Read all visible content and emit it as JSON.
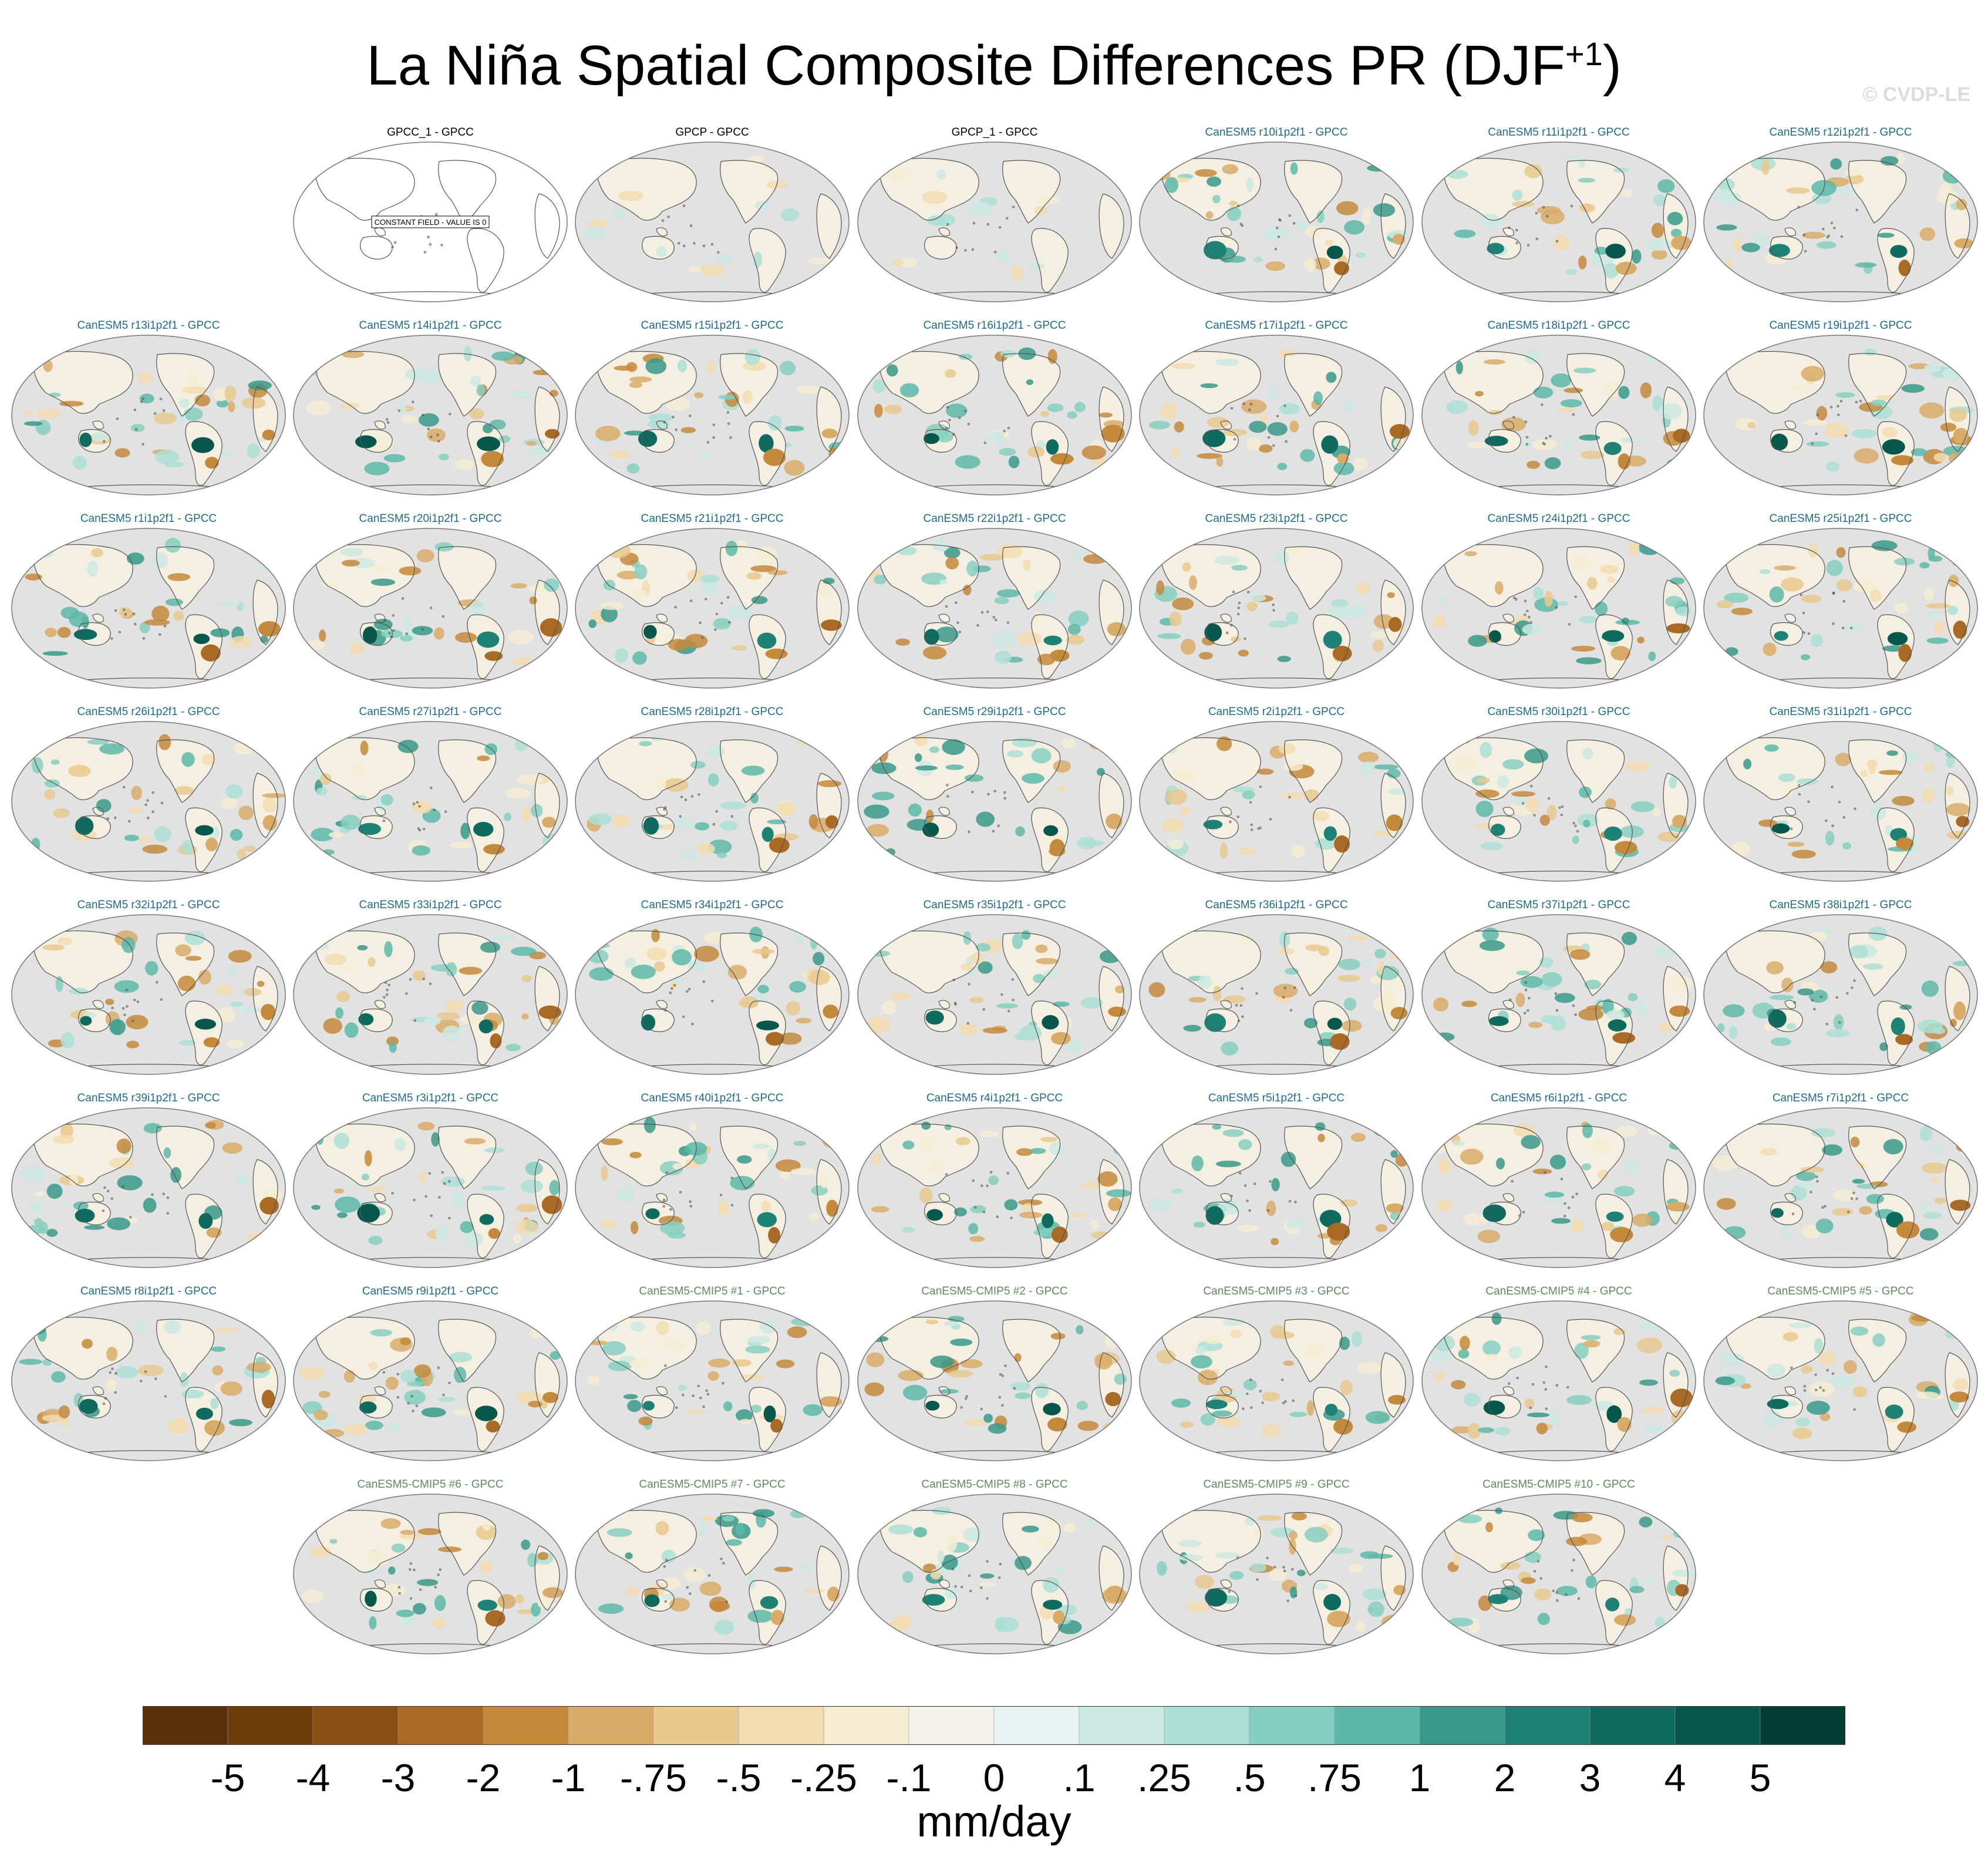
{
  "title": "La Niña Spatial Composite Differences PR (DJF",
  "title_sup": "+1",
  "title_end": ")",
  "credit": "© CVDP-LE",
  "constant_field_label": "CONSTANT FIELD - VALUE IS 0",
  "colors": {
    "obs_title": "#000000",
    "model_title": "#1f6b8a",
    "cmip5_title": "#5f8a5f",
    "ocean": "#e2e2e2",
    "coast": "#555555",
    "dry": "#b0772a",
    "wet": "#1a8a7a"
  },
  "panels": [
    {
      "title": "GPCC_1 - GPCC",
      "kind": "constant"
    },
    {
      "title": "GPCP - GPCC",
      "kind": "obs"
    },
    {
      "title": "GPCP_1 - GPCC",
      "kind": "obs"
    },
    {
      "title": "CanESM5 r10i1p2f1 - GPCC",
      "kind": "model"
    },
    {
      "title": "CanESM5 r11i1p2f1 - GPCC",
      "kind": "model"
    },
    {
      "title": "CanESM5 r12i1p2f1 - GPCC",
      "kind": "model"
    },
    {
      "title": "CanESM5 r13i1p2f1 - GPCC",
      "kind": "model"
    },
    {
      "title": "CanESM5 r14i1p2f1 - GPCC",
      "kind": "model"
    },
    {
      "title": "CanESM5 r15i1p2f1 - GPCC",
      "kind": "model"
    },
    {
      "title": "CanESM5 r16i1p2f1 - GPCC",
      "kind": "model"
    },
    {
      "title": "CanESM5 r17i1p2f1 - GPCC",
      "kind": "model"
    },
    {
      "title": "CanESM5 r18i1p2f1 - GPCC",
      "kind": "model"
    },
    {
      "title": "CanESM5 r19i1p2f1 - GPCC",
      "kind": "model"
    },
    {
      "title": "CanESM5 r1i1p2f1 - GPCC",
      "kind": "model"
    },
    {
      "title": "CanESM5 r20i1p2f1 - GPCC",
      "kind": "model"
    },
    {
      "title": "CanESM5 r21i1p2f1 - GPCC",
      "kind": "model"
    },
    {
      "title": "CanESM5 r22i1p2f1 - GPCC",
      "kind": "model"
    },
    {
      "title": "CanESM5 r23i1p2f1 - GPCC",
      "kind": "model"
    },
    {
      "title": "CanESM5 r24i1p2f1 - GPCC",
      "kind": "model"
    },
    {
      "title": "CanESM5 r25i1p2f1 - GPCC",
      "kind": "model"
    },
    {
      "title": "CanESM5 r26i1p2f1 - GPCC",
      "kind": "model"
    },
    {
      "title": "CanESM5 r27i1p2f1 - GPCC",
      "kind": "model"
    },
    {
      "title": "CanESM5 r28i1p2f1 - GPCC",
      "kind": "model"
    },
    {
      "title": "CanESM5 r29i1p2f1 - GPCC",
      "kind": "model"
    },
    {
      "title": "CanESM5 r2i1p2f1 - GPCC",
      "kind": "model"
    },
    {
      "title": "CanESM5 r30i1p2f1 - GPCC",
      "kind": "model"
    },
    {
      "title": "CanESM5 r31i1p2f1 - GPCC",
      "kind": "model"
    },
    {
      "title": "CanESM5 r32i1p2f1 - GPCC",
      "kind": "model"
    },
    {
      "title": "CanESM5 r33i1p2f1 - GPCC",
      "kind": "model"
    },
    {
      "title": "CanESM5 r34i1p2f1 - GPCC",
      "kind": "model"
    },
    {
      "title": "CanESM5 r35i1p2f1 - GPCC",
      "kind": "model"
    },
    {
      "title": "CanESM5 r36i1p2f1 - GPCC",
      "kind": "model"
    },
    {
      "title": "CanESM5 r37i1p2f1 - GPCC",
      "kind": "model"
    },
    {
      "title": "CanESM5 r38i1p2f1 - GPCC",
      "kind": "model"
    },
    {
      "title": "CanESM5 r39i1p2f1 - GPCC",
      "kind": "model"
    },
    {
      "title": "CanESM5 r3i1p2f1 - GPCC",
      "kind": "model"
    },
    {
      "title": "CanESM5 r40i1p2f1 - GPCC",
      "kind": "model"
    },
    {
      "title": "CanESM5 r4i1p2f1 - GPCC",
      "kind": "model"
    },
    {
      "title": "CanESM5 r5i1p2f1 - GPCC",
      "kind": "model"
    },
    {
      "title": "CanESM5 r6i1p2f1 - GPCC",
      "kind": "model"
    },
    {
      "title": "CanESM5 r7i1p2f1 - GPCC",
      "kind": "model"
    },
    {
      "title": "CanESM5 r8i1p2f1 - GPCC",
      "kind": "model"
    },
    {
      "title": "CanESM5 r9i1p2f1 - GPCC",
      "kind": "model"
    },
    {
      "title": "CanESM5-CMIP5 #1 - GPCC",
      "kind": "cmip5"
    },
    {
      "title": "CanESM5-CMIP5 #2 - GPCC",
      "kind": "cmip5"
    },
    {
      "title": "CanESM5-CMIP5 #3 - GPCC",
      "kind": "cmip5"
    },
    {
      "title": "CanESM5-CMIP5 #4 - GPCC",
      "kind": "cmip5"
    },
    {
      "title": "CanESM5-CMIP5 #5 - GPCC",
      "kind": "cmip5"
    },
    {
      "title": "CanESM5-CMIP5 #6 - GPCC",
      "kind": "cmip5"
    },
    {
      "title": "CanESM5-CMIP5 #7 - GPCC",
      "kind": "cmip5"
    },
    {
      "title": "CanESM5-CMIP5 #8 - GPCC",
      "kind": "cmip5"
    },
    {
      "title": "CanESM5-CMIP5 #9 - GPCC",
      "kind": "cmip5"
    },
    {
      "title": "CanESM5-CMIP5 #10 - GPCC",
      "kind": "cmip5"
    }
  ],
  "colorbar": {
    "colors": [
      "#5a3008",
      "#6e3c0a",
      "#8a4f12",
      "#a86a24",
      "#c48a3c",
      "#d8ab68",
      "#e8c98e",
      "#f2dcb0",
      "#f6ecd2",
      "#f4f1ea",
      "#e8f2f0",
      "#cde9e3",
      "#abdfd5",
      "#86cfc0",
      "#5cb8a8",
      "#38998a",
      "#1e8276",
      "#0f6a5f",
      "#07574d",
      "#033d33"
    ],
    "labels": [
      "-5",
      "-4",
      "-3",
      "-2",
      "-1",
      "-.75",
      "-.5",
      "-.25",
      "-.1",
      "0",
      ".1",
      ".25",
      ".5",
      ".75",
      "1",
      "2",
      "3",
      "4",
      "5"
    ],
    "units": "mm/day"
  }
}
